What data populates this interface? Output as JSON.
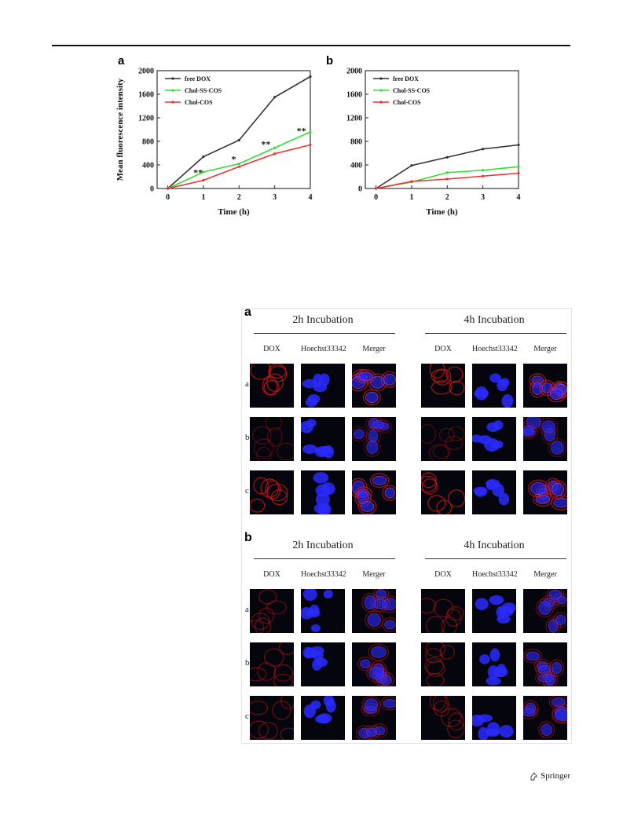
{
  "chart_data": [
    {
      "panel": "a",
      "type": "line",
      "ylabel": "Mean fluorescence intensity",
      "xlabel": "Time (h)",
      "x": [
        0,
        1,
        2,
        3,
        4
      ],
      "xlim": [
        -0.3,
        4
      ],
      "ylim": [
        0,
        2000
      ],
      "yticks": [
        0,
        400,
        800,
        1200,
        1600,
        2000
      ],
      "xticks": [
        0,
        1,
        2,
        3,
        4
      ],
      "legend_position": "top-left",
      "series": [
        {
          "name": "free DOX",
          "color": "#333333",
          "values": [
            0,
            540,
            820,
            1550,
            1900
          ]
        },
        {
          "name": "Chol-SS-COS",
          "color": "#33dd33",
          "values": [
            0,
            280,
            420,
            690,
            960
          ]
        },
        {
          "name": "Chol-COS",
          "color": "#ee3333",
          "values": [
            0,
            140,
            370,
            590,
            740
          ]
        }
      ],
      "annotations": [
        {
          "text": "**",
          "x": 0.85,
          "y": 220
        },
        {
          "text": "*",
          "x": 1.85,
          "y": 450
        },
        {
          "text": "**",
          "x": 2.75,
          "y": 700
        },
        {
          "text": "**",
          "x": 3.75,
          "y": 930
        }
      ]
    },
    {
      "panel": "b",
      "type": "line",
      "ylabel": "",
      "xlabel": "Time (h)",
      "x": [
        0,
        1,
        2,
        3,
        4
      ],
      "xlim": [
        -0.3,
        4
      ],
      "ylim": [
        0,
        2000
      ],
      "yticks": [
        0,
        400,
        800,
        1200,
        1600,
        2000
      ],
      "xticks": [
        0,
        1,
        2,
        3,
        4
      ],
      "legend_position": "top-left",
      "series": [
        {
          "name": "free DOX",
          "color": "#333333",
          "values": [
            0,
            390,
            530,
            670,
            740
          ]
        },
        {
          "name": "Chol-SS-COS",
          "color": "#33dd33",
          "values": [
            0,
            110,
            270,
            310,
            370
          ]
        },
        {
          "name": "Chol-COS",
          "color": "#ee3333",
          "values": [
            0,
            120,
            160,
            210,
            260
          ]
        }
      ]
    }
  ],
  "micrograph": {
    "panels": [
      {
        "letter": "a",
        "groups": [
          "2h Incubation",
          "4h Incubation"
        ],
        "columns": [
          "DOX",
          "Hoechst33342",
          "Merger"
        ],
        "rows": [
          "a",
          "b",
          "c"
        ]
      },
      {
        "letter": "b",
        "groups": [
          "2h Incubation",
          "4h Incubation"
        ],
        "columns": [
          "DOX",
          "Hoechst33342",
          "Merger"
        ],
        "rows": [
          "a",
          "b",
          "c"
        ]
      }
    ],
    "colors": {
      "dox": "#d01818",
      "hoechst": "#2a2aff",
      "background": "#05050d"
    }
  },
  "footer": {
    "publisher": "Springer"
  }
}
